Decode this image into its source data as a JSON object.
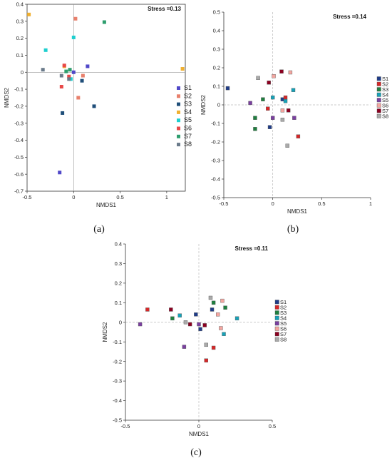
{
  "chart_data": [
    {
      "type": "scatter",
      "panel_label": "(a)",
      "stress": "Stress =0.13",
      "xlabel": "NMDS1",
      "ylabel": "NMDS2",
      "xlim": [
        -0.5,
        1.2
      ],
      "ylim": [
        -0.7,
        0.4
      ],
      "xticks": [
        -0.5,
        0,
        0.5,
        1
      ],
      "yticks": [
        0.4,
        0.3,
        0.2,
        0.1,
        0,
        -0.1,
        -0.2,
        -0.3,
        -0.4,
        -0.5,
        -0.6,
        -0.7
      ],
      "grid": false,
      "legend": "right",
      "series": [
        {
          "name": "S1",
          "color": "#5048c8",
          "points": [
            [
              -0.15,
              -0.59
            ],
            [
              0.15,
              0.035
            ],
            [
              0.0,
              0.0
            ]
          ]
        },
        {
          "name": "S2",
          "color": "#e8806c",
          "points": [
            [
              0.02,
              0.315
            ],
            [
              0.05,
              -0.15
            ],
            [
              0.1,
              -0.02
            ]
          ]
        },
        {
          "name": "S3",
          "color": "#1f4e79",
          "points": [
            [
              -0.12,
              -0.24
            ],
            [
              0.22,
              -0.2
            ],
            [
              0.09,
              -0.05
            ]
          ]
        },
        {
          "name": "S4",
          "color": "#f0b030",
          "points": [
            [
              -0.48,
              0.34
            ],
            [
              1.17,
              0.02
            ],
            [
              -0.1,
              0.035
            ]
          ]
        },
        {
          "name": "S5",
          "color": "#1ecfcf",
          "points": [
            [
              -0.3,
              0.13
            ],
            [
              0.0,
              0.205
            ],
            [
              -0.03,
              -0.04
            ]
          ]
        },
        {
          "name": "S6",
          "color": "#e84848",
          "points": [
            [
              -0.13,
              -0.085
            ],
            [
              -0.1,
              0.04
            ],
            [
              -0.05,
              -0.025
            ]
          ]
        },
        {
          "name": "S7",
          "color": "#2e9e6e",
          "points": [
            [
              0.33,
              0.295
            ],
            [
              -0.04,
              0.015
            ],
            [
              -0.08,
              0.005
            ]
          ]
        },
        {
          "name": "S8",
          "color": "#6a7a8a",
          "points": [
            [
              -0.33,
              0.015
            ],
            [
              -0.13,
              -0.02
            ],
            [
              -0.05,
              -0.04
            ]
          ]
        }
      ]
    },
    {
      "type": "scatter",
      "panel_label": "(b)",
      "stress": "Stress =0.14",
      "xlabel": "NMDS1",
      "ylabel": "NMDS2",
      "xlim": [
        -0.5,
        1
      ],
      "ylim": [
        -0.5,
        0.5
      ],
      "xticks": [
        -0.5,
        0,
        0.5,
        1
      ],
      "yticks": [
        0.5,
        0.4,
        0.3,
        0.2,
        0.1,
        0,
        -0.1,
        -0.2,
        -0.3,
        -0.4,
        -0.5
      ],
      "grid": false,
      "legend": "right",
      "series": [
        {
          "name": "S1",
          "color": "#1f3c88",
          "points": [
            [
              -0.46,
              0.09
            ],
            [
              -0.03,
              -0.12
            ],
            [
              0.1,
              0.03
            ]
          ]
        },
        {
          "name": "S2",
          "color": "#d62728",
          "points": [
            [
              0.26,
              -0.17
            ],
            [
              0.13,
              0.04
            ],
            [
              -0.05,
              -0.02
            ]
          ]
        },
        {
          "name": "S3",
          "color": "#1f7f3f",
          "points": [
            [
              -0.18,
              -0.07
            ],
            [
              -0.18,
              -0.13
            ],
            [
              -0.1,
              0.03
            ]
          ]
        },
        {
          "name": "S4",
          "color": "#17a2b8",
          "points": [
            [
              0.21,
              0.08
            ],
            [
              0.0,
              0.04
            ],
            [
              0.13,
              0.02
            ]
          ]
        },
        {
          "name": "S5",
          "color": "#7a3fa0",
          "points": [
            [
              0.22,
              -0.07
            ],
            [
              -0.23,
              0.01
            ],
            [
              0.0,
              -0.07
            ]
          ]
        },
        {
          "name": "S6",
          "color": "#f4a6a0",
          "points": [
            [
              0.18,
              0.175
            ],
            [
              0.01,
              0.155
            ],
            [
              0.1,
              -0.03
            ]
          ]
        },
        {
          "name": "S7",
          "color": "#8b0020",
          "points": [
            [
              0.09,
              0.18
            ],
            [
              -0.04,
              0.12
            ],
            [
              0.16,
              -0.03
            ]
          ]
        },
        {
          "name": "S8",
          "color": "#aaaaaa",
          "points": [
            [
              -0.15,
              0.145
            ],
            [
              0.15,
              -0.22
            ],
            [
              0.1,
              -0.08
            ]
          ]
        }
      ]
    },
    {
      "type": "scatter",
      "panel_label": "(c)",
      "stress": "Stress =0.11",
      "xlabel": "NMDS1",
      "ylabel": "NMDS2",
      "xlim": [
        -0.5,
        0.5
      ],
      "ylim": [
        -0.5,
        0.4
      ],
      "xticks": [
        -0.5,
        0,
        0.5
      ],
      "yticks": [
        0.4,
        0.3,
        0.2,
        0.1,
        0,
        -0.1,
        -0.2,
        -0.3,
        -0.4,
        -0.5
      ],
      "grid": false,
      "legend": "right",
      "series": [
        {
          "name": "S1",
          "color": "#1f3c88",
          "points": [
            [
              -0.02,
              0.04
            ],
            [
              0.09,
              0.065
            ],
            [
              0.01,
              -0.035
            ]
          ]
        },
        {
          "name": "S2",
          "color": "#d62728",
          "points": [
            [
              -0.35,
              0.065
            ],
            [
              0.05,
              -0.195
            ],
            [
              0.1,
              -0.13
            ]
          ]
        },
        {
          "name": "S3",
          "color": "#1f7f3f",
          "points": [
            [
              -0.18,
              0.02
            ],
            [
              0.1,
              0.1
            ],
            [
              0.18,
              0.075
            ]
          ]
        },
        {
          "name": "S4",
          "color": "#17a2b8",
          "points": [
            [
              -0.13,
              0.035
            ],
            [
              0.26,
              0.02
            ],
            [
              0.17,
              -0.06
            ]
          ]
        },
        {
          "name": "S5",
          "color": "#7a3fa0",
          "points": [
            [
              -0.4,
              -0.01
            ],
            [
              0.0,
              -0.01
            ],
            [
              -0.1,
              -0.125
            ]
          ]
        },
        {
          "name": "S6",
          "color": "#f4a6a0",
          "points": [
            [
              0.16,
              0.11
            ],
            [
              0.15,
              -0.03
            ],
            [
              0.13,
              0.04
            ]
          ]
        },
        {
          "name": "S7",
          "color": "#8b0020",
          "points": [
            [
              -0.19,
              0.065
            ],
            [
              -0.06,
              -0.01
            ],
            [
              0.04,
              -0.015
            ]
          ]
        },
        {
          "name": "S8",
          "color": "#aaaaaa",
          "points": [
            [
              0.08,
              0.125
            ],
            [
              -0.09,
              0.0
            ],
            [
              0.05,
              -0.115
            ]
          ]
        }
      ]
    }
  ]
}
